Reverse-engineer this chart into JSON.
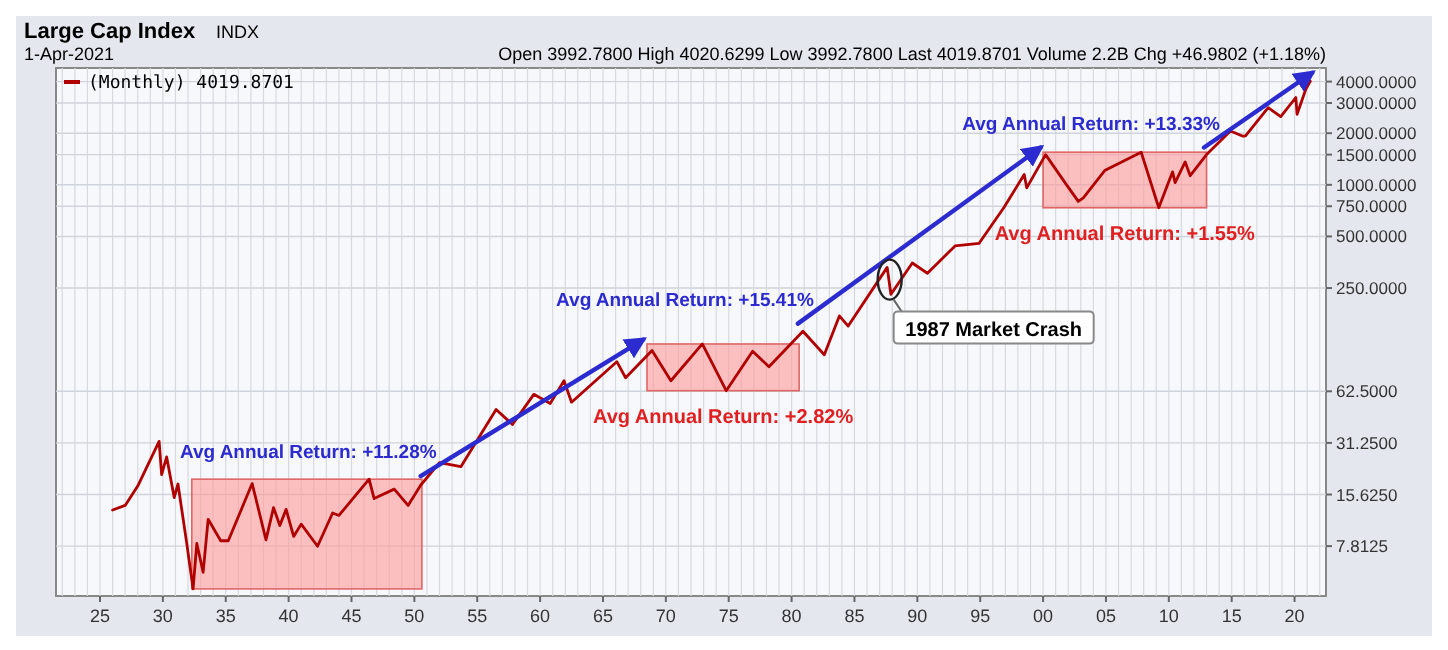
{
  "chart_data": {
    "type": "line",
    "title": "Large Cap Index",
    "subtitle": "1-Apr-2021",
    "annotations": [
      "INDX",
      "Open 3992.7800  High 4020.6299  Low 3992.7800  Last 4019.8701  Volume 2.2B  Chg +46.9802 (+1.18%)",
      {
        "text": "1987 Market Crash",
        "x": 1987.8,
        "y": 280
      }
    ],
    "log": true,
    "grid": true,
    "legend": "top left",
    "marker": "none",
    "line_style": "solid",
    "xlim": [
      1921.5,
      2022.5
    ],
    "ylim": [
      4,
      4800
    ],
    "xticks": [
      {
        "value": 1925,
        "label": "25"
      },
      {
        "value": 1930,
        "label": "30"
      },
      {
        "value": 1935,
        "label": "35"
      },
      {
        "value": 1940,
        "label": "40"
      },
      {
        "value": 1945,
        "label": "45"
      },
      {
        "value": 1950,
        "label": "50"
      },
      {
        "value": 1955,
        "label": "55"
      },
      {
        "value": 1960,
        "label": "60"
      },
      {
        "value": 1965,
        "label": "65"
      },
      {
        "value": 1970,
        "label": "70"
      },
      {
        "value": 1975,
        "label": "75"
      },
      {
        "value": 1980,
        "label": "80"
      },
      {
        "value": 1985,
        "label": "85"
      },
      {
        "value": 1990,
        "label": "90"
      },
      {
        "value": 1995,
        "label": "95"
      },
      {
        "value": 2000,
        "label": "00"
      },
      {
        "value": 2005,
        "label": "05"
      },
      {
        "value": 2010,
        "label": "10"
      },
      {
        "value": 2015,
        "label": "15"
      },
      {
        "value": 2020,
        "label": "20"
      }
    ],
    "yticks": [
      {
        "value": 7.8125,
        "label": "7.8125"
      },
      {
        "value": 15.625,
        "label": "15.6250"
      },
      {
        "value": 31.25,
        "label": "31.2500"
      },
      {
        "value": 62.5,
        "label": "62.5000"
      },
      {
        "value": 250,
        "label": "250.0000"
      },
      {
        "value": 500,
        "label": "500.0000"
      },
      {
        "value": 750,
        "label": "750.0000"
      },
      {
        "value": 1000,
        "label": "1000.0000"
      },
      {
        "value": 1500,
        "label": "1500.0000"
      },
      {
        "value": 2000,
        "label": "2000.0000"
      },
      {
        "value": 3000,
        "label": "3000.0000"
      },
      {
        "value": 4000,
        "label": "4000.0000"
      }
    ],
    "bands": [
      {
        "axis": "x",
        "from": 1932.3,
        "to": 1950.6,
        "color": "#ff9999"
      },
      {
        "axis": "x",
        "from": 1968.5,
        "to": 1980.6,
        "color": "#ff9999",
        "label": "Avg Annual Return:  +2.82%"
      },
      {
        "axis": "x",
        "from": 2000.0,
        "to": 2013.0,
        "color": "#ff9999",
        "label": "Avg Annual Return:  +1.55%"
      }
    ],
    "series": [
      {
        "name": "(Monthly) 4019.8701",
        "color": "#b00000",
        "x": [
          1926.0,
          1927.0,
          1928.0,
          1929.7,
          1929.9,
          1930.3,
          1930.9,
          1931.2,
          1931.9,
          1932.4,
          1932.7,
          1933.2,
          1933.6,
          1934.6,
          1935.2,
          1937.1,
          1938.2,
          1938.8,
          1939.3,
          1939.8,
          1940.4,
          1941.0,
          1942.3,
          1943.5,
          1944.0,
          1946.4,
          1946.8,
          1948.4,
          1949.5,
          1950.5,
          1952.0,
          1953.7,
          1956.5,
          1957.8,
          1959.5,
          1960.8,
          1961.9,
          1962.5,
          1966.1,
          1966.8,
          1968.9,
          1970.4,
          1972.9,
          1974.8,
          1976.9,
          1978.2,
          1980.9,
          1982.6,
          1983.8,
          1984.5,
          1987.6,
          1987.9,
          1989.6,
          1990.8,
          1993.0,
          1994.9,
          1996.9,
          1998.5,
          1998.7,
          2000.2,
          2001.7,
          2002.8,
          2003.2,
          2004.9,
          2007.8,
          2009.2,
          2010.3,
          2010.5,
          2011.3,
          2011.7,
          2013.0,
          2014.9,
          2015.9,
          2016.1,
          2017.9,
          2018.9,
          2020.1,
          2020.2,
          2020.9,
          2021.25
        ],
        "values": [
          12.7,
          13.5,
          17.5,
          31.9,
          20.4,
          25.9,
          15,
          18,
          8.1,
          4.4,
          8.1,
          5.5,
          11.2,
          8.4,
          8.4,
          18.1,
          8.5,
          13.1,
          10.3,
          12.8,
          8.9,
          10.5,
          7.8,
          12.2,
          11.8,
          19.2,
          14.8,
          16.8,
          13.5,
          17.7,
          24,
          22.7,
          49,
          40,
          60,
          53,
          72,
          54,
          93,
          75,
          108,
          72,
          118,
          63,
          107,
          87,
          140,
          102,
          172,
          150,
          330,
          230,
          350,
          305,
          440,
          455,
          740,
          1150,
          960,
          1500,
          1040,
          800,
          840,
          1210,
          1550,
          735,
          1190,
          1030,
          1360,
          1130,
          1500,
          2060,
          1920,
          1930,
          2820,
          2500,
          3230,
          2580,
          3620,
          4020
        ]
      },
      {
        "name": "Avg Annual Return:  +11.28%",
        "color": "#2b2bd0",
        "x": [
          1950.5,
          1968.2
        ],
        "values": [
          20,
          125
        ]
      },
      {
        "name": "Avg Annual Return:  +15.41%",
        "color": "#2b2bd0",
        "x": [
          1980.5,
          1999.8
        ],
        "values": [
          155,
          1650
        ]
      },
      {
        "name": "Avg Annual Return:  +13.33%",
        "color": "#2b2bd0",
        "x": [
          2012.8,
          2021.4
        ],
        "values": [
          1650,
          4500
        ]
      }
    ]
  }
}
